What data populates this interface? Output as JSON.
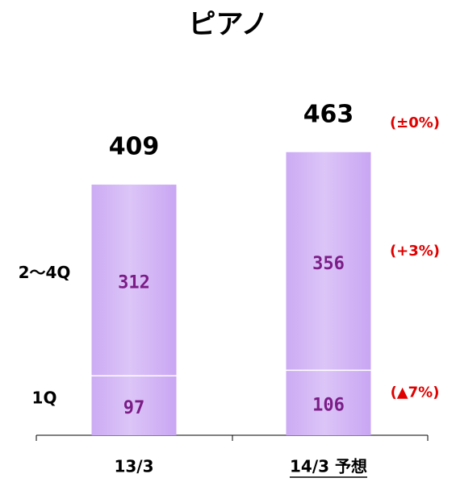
{
  "chart_data": {
    "type": "stacked-bar",
    "title": "ピアノ",
    "categories": [
      "13/3",
      "14/3 予想"
    ],
    "series": [
      {
        "name": "1Q",
        "color": "#c9a6f3",
        "values": [
          97,
          106
        ],
        "change": "(▲7%)"
      },
      {
        "name": "2〜4Q",
        "color": "#c9a6f3",
        "values": [
          312,
          356
        ],
        "change": "(+3%)"
      }
    ],
    "totals": [
      409,
      463
    ],
    "total_change": "(±0%)"
  }
}
